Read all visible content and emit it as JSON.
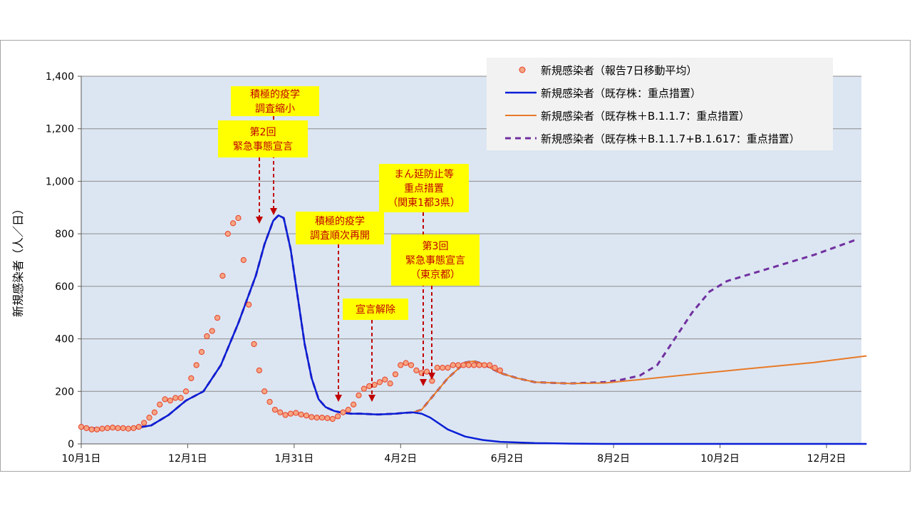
{
  "chart_data": {
    "type": "line",
    "ylabel": "新規感染者（人／日）",
    "xlabel": "",
    "ylim": [
      0,
      1400
    ],
    "y_ticks": [
      "0",
      "200",
      "400",
      "600",
      "800",
      "1,000",
      "1,200",
      "1,400"
    ],
    "x_ticks": [
      "10月1日",
      "12月1日",
      "1月31日",
      "4月2日",
      "6月2日",
      "8月2日",
      "10月2日",
      "12月2日"
    ],
    "x_tick_days": [
      0,
      61,
      122,
      183,
      244,
      305,
      366,
      427
    ],
    "grid": "horizontal",
    "legend_position": "top-right",
    "colors": {
      "plot_bg": "#dce6f2",
      "dots_fill": "#f4a582",
      "dots_stroke": "#e8402a",
      "existing": "#0a1fd6",
      "b117": "#e87a28",
      "b1617": "#7030a0",
      "arrow": "#c00000",
      "annotation_bg": "#ffff00",
      "annotation_text": "#c00000"
    },
    "legend": [
      {
        "label": "新規感染者（報告7日移動平均）",
        "style": "dots"
      },
      {
        "label": "新規感染者（既存株：重点措置）",
        "style": "solid-blue"
      },
      {
        "label": "新規感染者（既存株＋B.1.1.7：重点措置）",
        "style": "solid-orange"
      },
      {
        "label": "新規感染者（既存株＋B.1.1.7+B.1.617：重点措置）",
        "style": "dashed-purple"
      }
    ],
    "series": [
      {
        "name": "新規感染者（報告7日移動平均）",
        "type": "scatter",
        "x": [
          0,
          3,
          6,
          9,
          12,
          15,
          18,
          21,
          24,
          27,
          30,
          33,
          36,
          39,
          42,
          45,
          48,
          51,
          54,
          57,
          60,
          63,
          66,
          69,
          72,
          75,
          78,
          81,
          84,
          87,
          90,
          93,
          96,
          99,
          102,
          105,
          108,
          111,
          114,
          117,
          120,
          123,
          126,
          129,
          132,
          135,
          138,
          141,
          144,
          147,
          150,
          153,
          156,
          159,
          162,
          165,
          168,
          171,
          174,
          177,
          180,
          183,
          186,
          189,
          192,
          195,
          198,
          201,
          204,
          207,
          210,
          213,
          216,
          219,
          222,
          225,
          228,
          231,
          234,
          237,
          240
        ],
        "y": [
          65,
          60,
          55,
          55,
          58,
          60,
          62,
          60,
          60,
          58,
          60,
          65,
          80,
          100,
          120,
          150,
          170,
          165,
          175,
          175,
          200,
          250,
          300,
          350,
          410,
          430,
          480,
          640,
          800,
          840,
          860,
          700,
          530,
          380,
          280,
          200,
          160,
          130,
          120,
          110,
          115,
          118,
          112,
          108,
          102,
          100,
          100,
          98,
          95,
          105,
          120,
          130,
          150,
          185,
          210,
          220,
          225,
          235,
          245,
          230,
          265,
          300,
          308,
          300,
          280,
          270,
          275,
          240,
          290,
          290,
          290,
          300,
          300,
          300,
          300,
          300,
          300,
          300,
          300,
          290,
          280
        ]
      },
      {
        "name": "新規感染者（既存株：重点措置）",
        "x": [
          0,
          10,
          20,
          30,
          40,
          50,
          60,
          70,
          80,
          90,
          100,
          105,
          110,
          113,
          116,
          120,
          124,
          128,
          132,
          136,
          140,
          145,
          150,
          155,
          160,
          170,
          180,
          185,
          190,
          195,
          200,
          210,
          220,
          230,
          240,
          260,
          280,
          300,
          330,
          360,
          400,
          440,
          450
        ],
        "y": [
          62,
          58,
          60,
          60,
          70,
          110,
          165,
          200,
          300,
          460,
          640,
          760,
          850,
          870,
          860,
          740,
          560,
          380,
          250,
          170,
          140,
          125,
          118,
          115,
          115,
          112,
          115,
          118,
          120,
          115,
          100,
          55,
          28,
          15,
          8,
          3,
          1,
          0,
          0,
          0,
          0,
          0,
          0
        ]
      },
      {
        "name": "新規感染者（既存株＋B.1.1.7：重点措置）",
        "x": [
          0,
          10,
          20,
          30,
          40,
          50,
          60,
          70,
          80,
          90,
          100,
          105,
          110,
          113,
          116,
          120,
          124,
          128,
          132,
          136,
          140,
          145,
          150,
          155,
          160,
          170,
          180,
          185,
          190,
          195,
          200,
          205,
          210,
          215,
          220,
          225,
          230,
          240,
          250,
          260,
          280,
          300,
          320,
          350,
          380,
          420,
          450
        ],
        "y": [
          62,
          58,
          60,
          60,
          70,
          110,
          165,
          200,
          300,
          460,
          640,
          760,
          850,
          870,
          860,
          740,
          560,
          380,
          250,
          170,
          140,
          125,
          118,
          115,
          115,
          112,
          115,
          118,
          120,
          130,
          170,
          210,
          250,
          280,
          310,
          315,
          305,
          270,
          250,
          235,
          230,
          232,
          245,
          265,
          285,
          310,
          335
        ]
      },
      {
        "name": "新規感染者（既存株＋B.1.1.7+B.1.617：重点措置）",
        "x": [
          0,
          10,
          20,
          30,
          40,
          50,
          60,
          70,
          80,
          90,
          100,
          105,
          110,
          113,
          116,
          120,
          124,
          128,
          132,
          136,
          140,
          145,
          150,
          155,
          160,
          170,
          180,
          185,
          190,
          195,
          200,
          205,
          210,
          215,
          220,
          225,
          230,
          240,
          250,
          260,
          280,
          300,
          310,
          320,
          330,
          340,
          350,
          360,
          370,
          380,
          400,
          420,
          445
        ],
        "y": [
          62,
          58,
          60,
          60,
          70,
          110,
          165,
          200,
          300,
          460,
          640,
          760,
          850,
          870,
          860,
          740,
          560,
          380,
          250,
          170,
          140,
          125,
          118,
          115,
          115,
          112,
          115,
          118,
          120,
          130,
          170,
          210,
          250,
          280,
          310,
          315,
          305,
          270,
          250,
          235,
          230,
          235,
          245,
          260,
          300,
          400,
          500,
          580,
          620,
          640,
          680,
          720,
          780
        ]
      }
    ],
    "annotations": [
      {
        "lines": [
          "積極的疫学",
          "調査縮小"
        ],
        "x": 112
      },
      {
        "lines": [
          "第2回",
          "緊急事態宣言"
        ],
        "x": 104
      },
      {
        "lines": [
          "積極的疫学",
          "調査順次再開"
        ],
        "x": 148
      },
      {
        "lines": [
          "宣言解除"
        ],
        "x": 168
      },
      {
        "lines": [
          "まん延防止等",
          "重点措置",
          "（関東1都3県）"
        ],
        "x": 198
      },
      {
        "lines": [
          "第3回",
          "緊急事態宣言",
          "（東京都）"
        ],
        "x": 203
      }
    ]
  }
}
